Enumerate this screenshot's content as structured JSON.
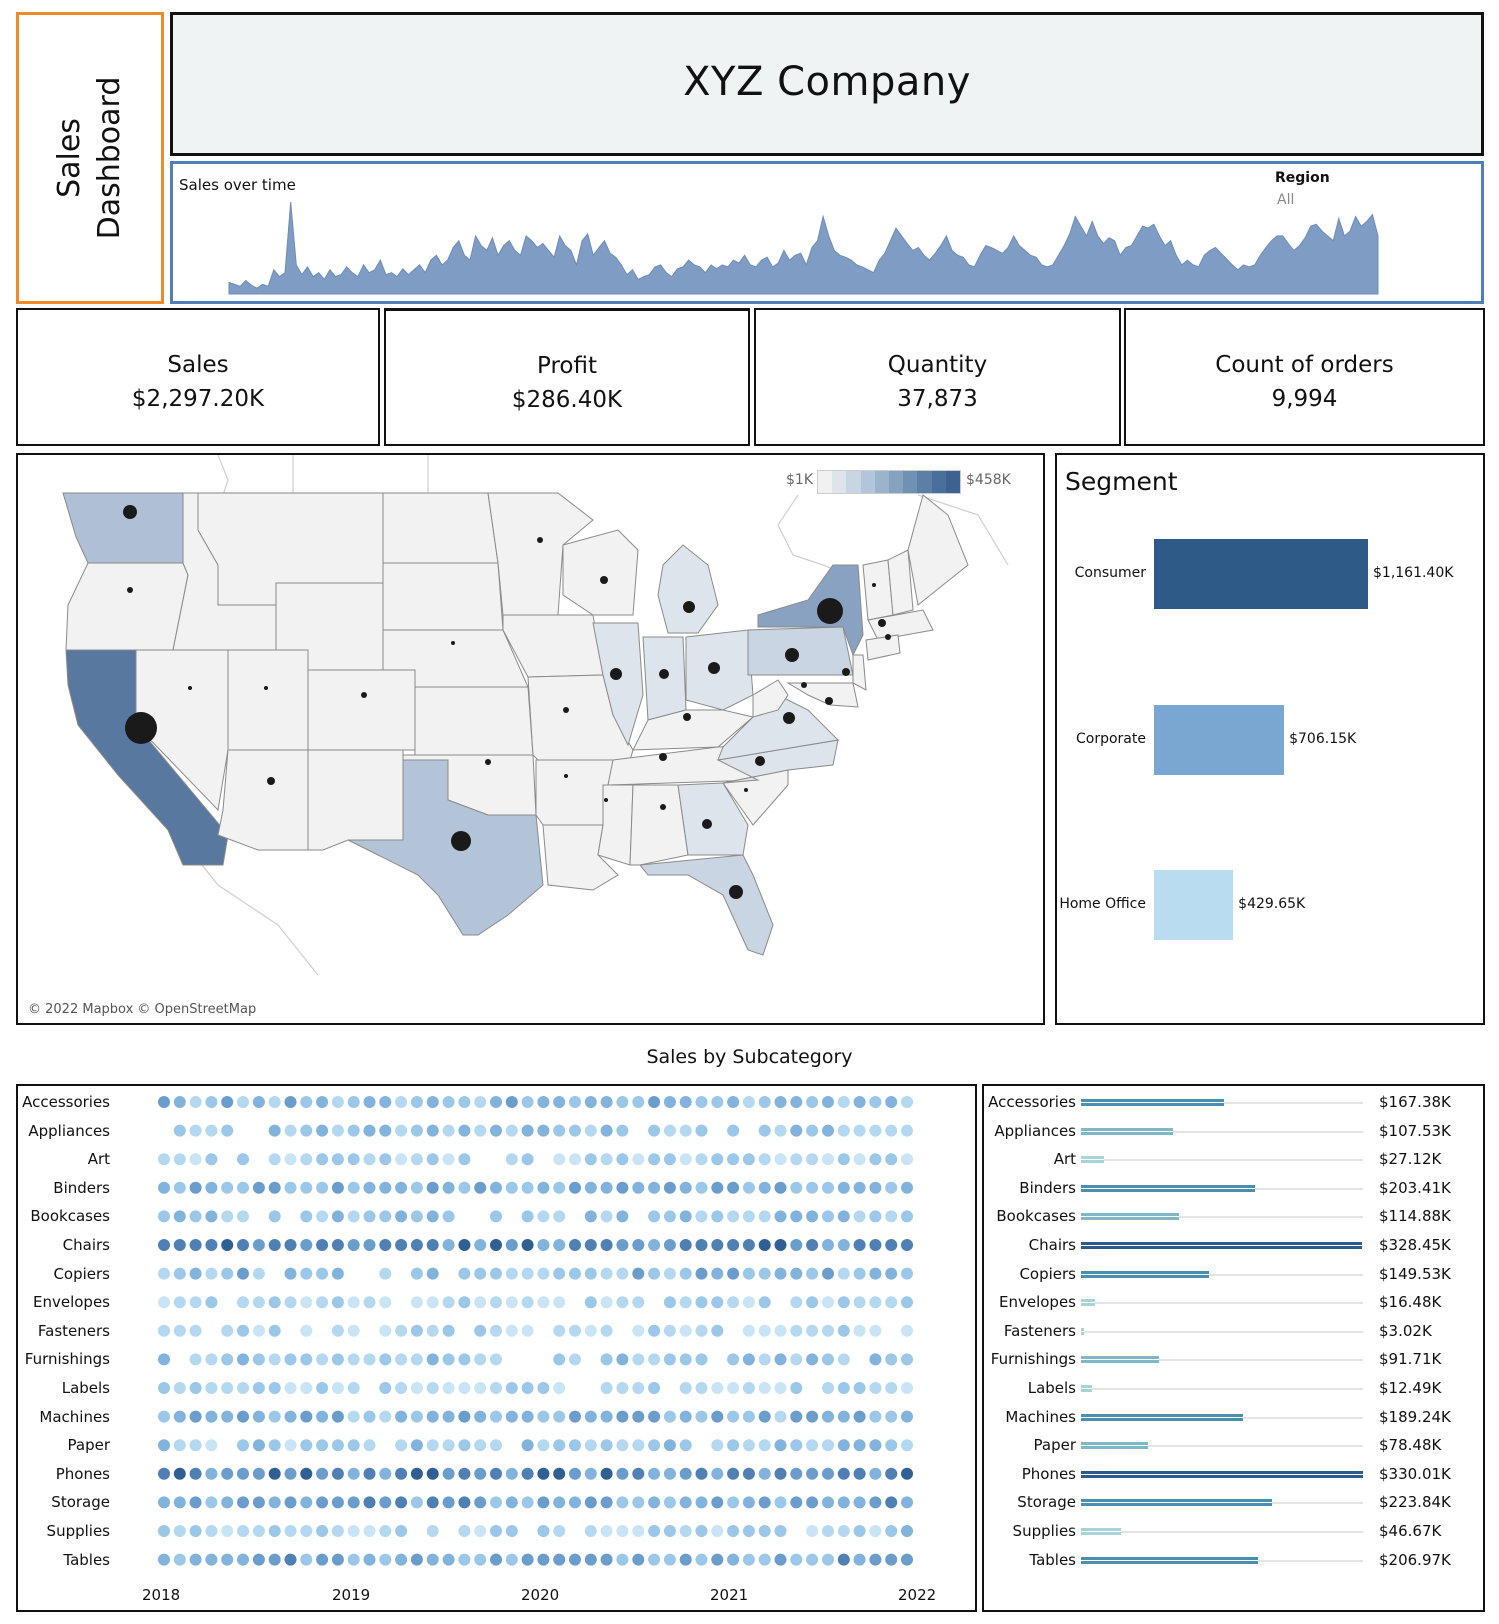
{
  "side_title": {
    "line1": "Sales",
    "line2": "Dashboard"
  },
  "header": {
    "company": "XYZ Company"
  },
  "timeline": {
    "label": "Sales over time",
    "filter_label": "Region",
    "filter_value": "All",
    "color": "#7f9cc4",
    "values": [
      12,
      10,
      8,
      14,
      9,
      6,
      10,
      8,
      25,
      18,
      22,
      95,
      30,
      20,
      28,
      18,
      22,
      15,
      25,
      18,
      20,
      28,
      22,
      18,
      30,
      22,
      25,
      35,
      20,
      22,
      18,
      26,
      20,
      25,
      30,
      22,
      35,
      40,
      30,
      35,
      48,
      55,
      40,
      35,
      60,
      50,
      45,
      58,
      40,
      50,
      55,
      45,
      40,
      60,
      55,
      48,
      52,
      45,
      38,
      60,
      50,
      45,
      30,
      55,
      62,
      40,
      48,
      55,
      42,
      38,
      30,
      20,
      25,
      15,
      18,
      20,
      28,
      30,
      22,
      18,
      26,
      28,
      35,
      30,
      28,
      22,
      30,
      26,
      30,
      28,
      35,
      32,
      40,
      30,
      28,
      35,
      38,
      28,
      32,
      45,
      35,
      40,
      42,
      30,
      48,
      55,
      80,
      60,
      45,
      40,
      38,
      35,
      30,
      28,
      25,
      22,
      35,
      42,
      55,
      68,
      60,
      52,
      45,
      48,
      40,
      35,
      42,
      50,
      60,
      45,
      40,
      38,
      30,
      28,
      40,
      50,
      48,
      45,
      42,
      48,
      60,
      50,
      45,
      40,
      38,
      30,
      28,
      30,
      40,
      50,
      62,
      80,
      70,
      60,
      75,
      60,
      52,
      58,
      55,
      40,
      48,
      50,
      60,
      70,
      68,
      72,
      60,
      50,
      55,
      40,
      30,
      35,
      30,
      28,
      40,
      45,
      48,
      42,
      36,
      30,
      25,
      30,
      28,
      30,
      40,
      48,
      55,
      60,
      60,
      52,
      45,
      50,
      58,
      70,
      72,
      65,
      60,
      55,
      78,
      60,
      65,
      80,
      70,
      75,
      82,
      60
    ]
  },
  "kpis": [
    {
      "label": "Sales",
      "value": "$2,297.20K"
    },
    {
      "label": "Profit",
      "value": "$286.40K"
    },
    {
      "label": "Quantity",
      "value": "37,873"
    },
    {
      "label": "Count of orders",
      "value": "9,994"
    }
  ],
  "map": {
    "legend_min": "$1K",
    "legend_max": "$458K",
    "credit": "© 2022 Mapbox © OpenStreetMap",
    "scale_colors": [
      "#f1f1f1",
      "#dde4ec",
      "#c9d5e3",
      "#b3c5d9",
      "#9db3cd",
      "#87a1c1",
      "#7090b4",
      "#5c7fa8",
      "#4b6f9c",
      "#3d6291"
    ]
  },
  "segment": {
    "title": "Segment",
    "items": [
      {
        "label": "Consumer",
        "value": "$1,161.40K",
        "amount": 1161.4,
        "color": "#2e5a87"
      },
      {
        "label": "Corporate",
        "value": "$706.15K",
        "amount": 706.15,
        "color": "#79a7d1"
      },
      {
        "label": "Home Office",
        "value": "$429.65K",
        "amount": 429.65,
        "color": "#b9dcf1"
      }
    ]
  },
  "subcategory": {
    "title": "Sales by Subcategory",
    "years": [
      "2018",
      "2019",
      "2020",
      "2021",
      "2022"
    ],
    "rows": [
      {
        "label": "Accessories",
        "value": "$167.38K",
        "amount": 167.38
      },
      {
        "label": "Appliances",
        "value": "$107.53K",
        "amount": 107.53
      },
      {
        "label": "Art",
        "value": "$27.12K",
        "amount": 27.12
      },
      {
        "label": "Binders",
        "value": "$203.41K",
        "amount": 203.41
      },
      {
        "label": "Bookcases",
        "value": "$114.88K",
        "amount": 114.88
      },
      {
        "label": "Chairs",
        "value": "$328.45K",
        "amount": 328.45
      },
      {
        "label": "Copiers",
        "value": "$149.53K",
        "amount": 149.53
      },
      {
        "label": "Envelopes",
        "value": "$16.48K",
        "amount": 16.48
      },
      {
        "label": "Fasteners",
        "value": "$3.02K",
        "amount": 3.02
      },
      {
        "label": "Furnishings",
        "value": "$91.71K",
        "amount": 91.71
      },
      {
        "label": "Labels",
        "value": "$12.49K",
        "amount": 12.49
      },
      {
        "label": "Machines",
        "value": "$189.24K",
        "amount": 189.24
      },
      {
        "label": "Paper",
        "value": "$78.48K",
        "amount": 78.48
      },
      {
        "label": "Phones",
        "value": "$330.01K",
        "amount": 330.01
      },
      {
        "label": "Storage",
        "value": "$223.84K",
        "amount": 223.84
      },
      {
        "label": "Supplies",
        "value": "$46.67K",
        "amount": 46.67
      },
      {
        "label": "Tables",
        "value": "$206.97K",
        "amount": 206.97
      }
    ]
  }
}
